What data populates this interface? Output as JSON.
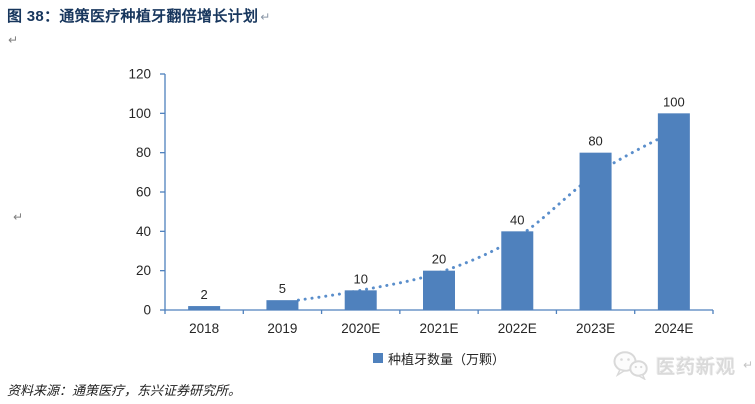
{
  "header": {
    "title": "图 38：通策医疗种植牙翻倍增长计划",
    "pilcrow": "↵"
  },
  "marks": {
    "pilcrow": "↵"
  },
  "chart_data": {
    "type": "bar",
    "title": "图 38：通策医疗种植牙翻倍增长计划",
    "categories": [
      "2018",
      "2019",
      "2020E",
      "2021E",
      "2022E",
      "2023E",
      "2024E"
    ],
    "values": [
      2,
      5,
      10,
      20,
      40,
      80,
      100
    ],
    "series_name": "种植牙数量（万颗）",
    "xlabel": "",
    "ylabel": "",
    "ylim": [
      0,
      120
    ],
    "ytick_step": 20,
    "ytick_labels": [
      "0",
      "20",
      "40",
      "60",
      "80",
      "100",
      "120"
    ],
    "grid": false,
    "legend_position": "bottom",
    "bar_color": "#4f81bd",
    "axis_color": "#4f81bd",
    "label_color": "#262626",
    "trendline": {
      "style": "dotted",
      "color": "#5a8ecb",
      "categories": [
        "2019",
        "2020E",
        "2021E",
        "2022E",
        "2023E",
        "2024E"
      ],
      "values": [
        5,
        10,
        19,
        37,
        69,
        91
      ]
    }
  },
  "source_note": "资料来源：通策医疗，东兴证券研究所。",
  "watermark": {
    "icon": "wechat-icon",
    "text": "医药新观",
    "pilcrow": "↵"
  },
  "colors": {
    "title": "#17365d",
    "bar": "#4f81bd",
    "axis": "#4f81bd",
    "trend_dots": "#5a8ecb",
    "watermark": "#dadada"
  }
}
